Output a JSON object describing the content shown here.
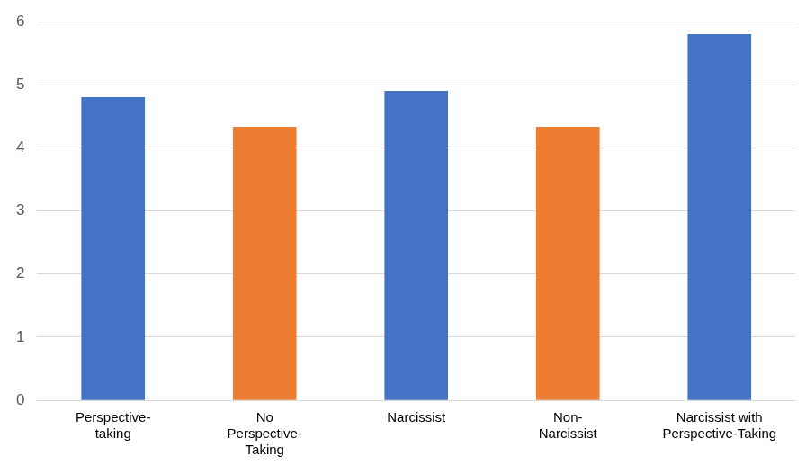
{
  "chart_data": {
    "type": "bar",
    "categories": [
      "Perspective-\ntaking",
      "No\nPerspective-\nTaking",
      "Narcissist",
      "Non-\nNarcissist",
      "Narcissist with\nPerspective-Taking"
    ],
    "values": [
      4.8,
      4.33,
      4.9,
      4.33,
      5.8
    ],
    "colors": [
      "#4472c4",
      "#ed7d31",
      "#4472c4",
      "#ed7d31",
      "#4472c4"
    ],
    "ylim": [
      0,
      6
    ],
    "yticks": [
      0,
      1,
      2,
      3,
      4,
      5,
      6
    ],
    "grid": true
  }
}
